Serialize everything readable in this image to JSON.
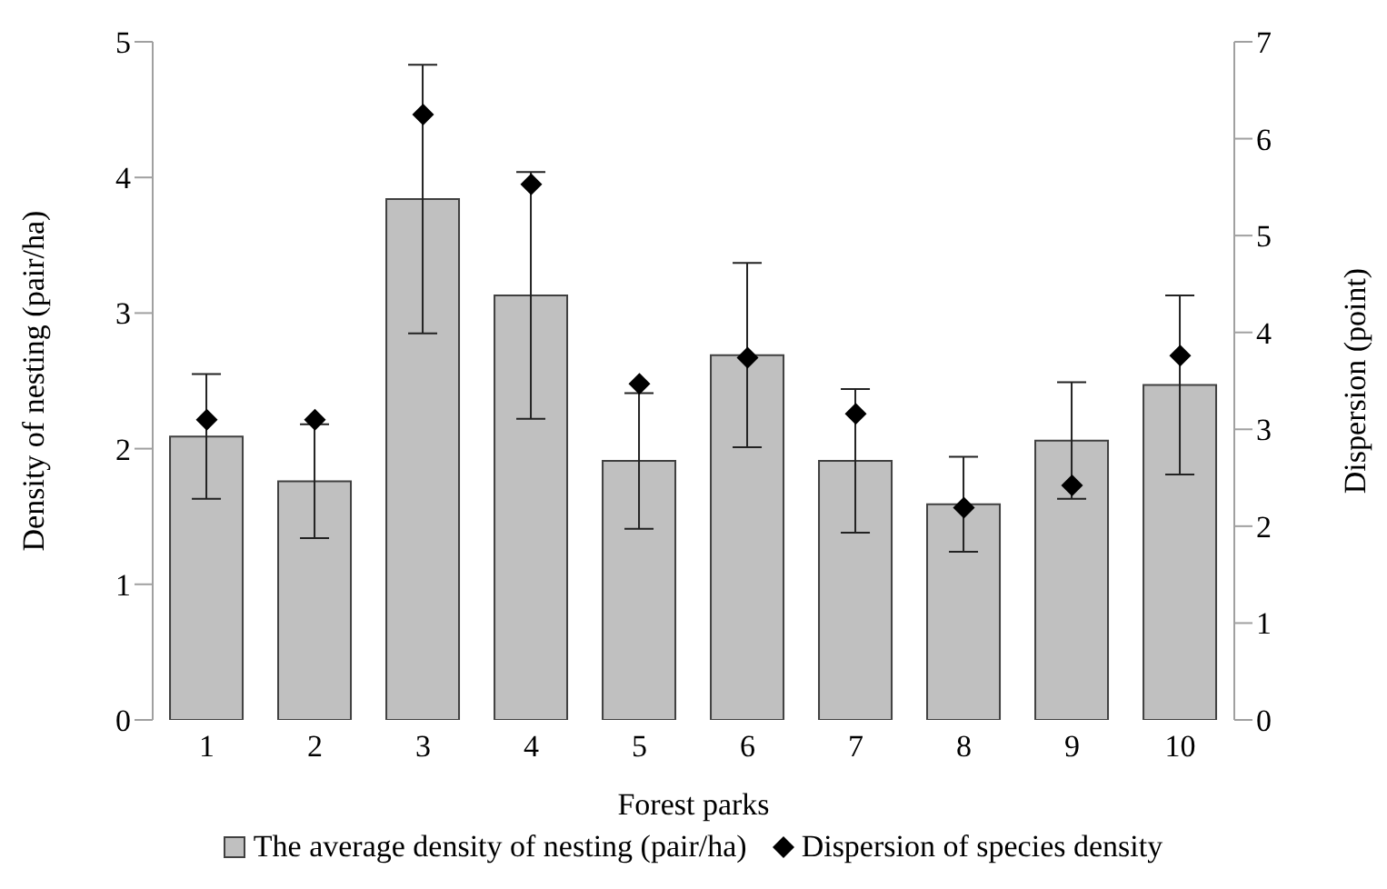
{
  "chart_data": {
    "type": "bar",
    "xlabel": "Forest parks",
    "ylabel": "Density of nesting (pair/ha)",
    "y2label": "Dispersion (point)",
    "categories": [
      "1",
      "2",
      "3",
      "4",
      "5",
      "6",
      "7",
      "8",
      "9",
      "10"
    ],
    "series": [
      {
        "name": "The average density of nesting (pair/ha)",
        "color": "#c0c0c0",
        "values": [
          2.09,
          1.76,
          3.84,
          3.13,
          1.91,
          2.69,
          1.91,
          1.59,
          2.06,
          2.47
        ],
        "errors": [
          0.46,
          0.42,
          0.99,
          0.91,
          0.5,
          0.68,
          0.53,
          0.35,
          0.43,
          0.66
        ]
      },
      {
        "name": "Dispersion of species density",
        "type": "scatter",
        "axis": "y2",
        "color": "#000000",
        "marker": "diamond",
        "values": [
          3.1,
          3.1,
          6.25,
          5.53,
          3.47,
          3.74,
          3.16,
          2.19,
          2.42,
          3.76
        ]
      }
    ],
    "ylim": [
      0,
      5
    ],
    "yticks": [
      0,
      1,
      2,
      3,
      4,
      5
    ],
    "y2lim": [
      0,
      7
    ],
    "y2ticks": [
      0,
      1,
      2,
      3,
      4,
      5,
      6,
      7
    ],
    "legend": "bottom"
  }
}
